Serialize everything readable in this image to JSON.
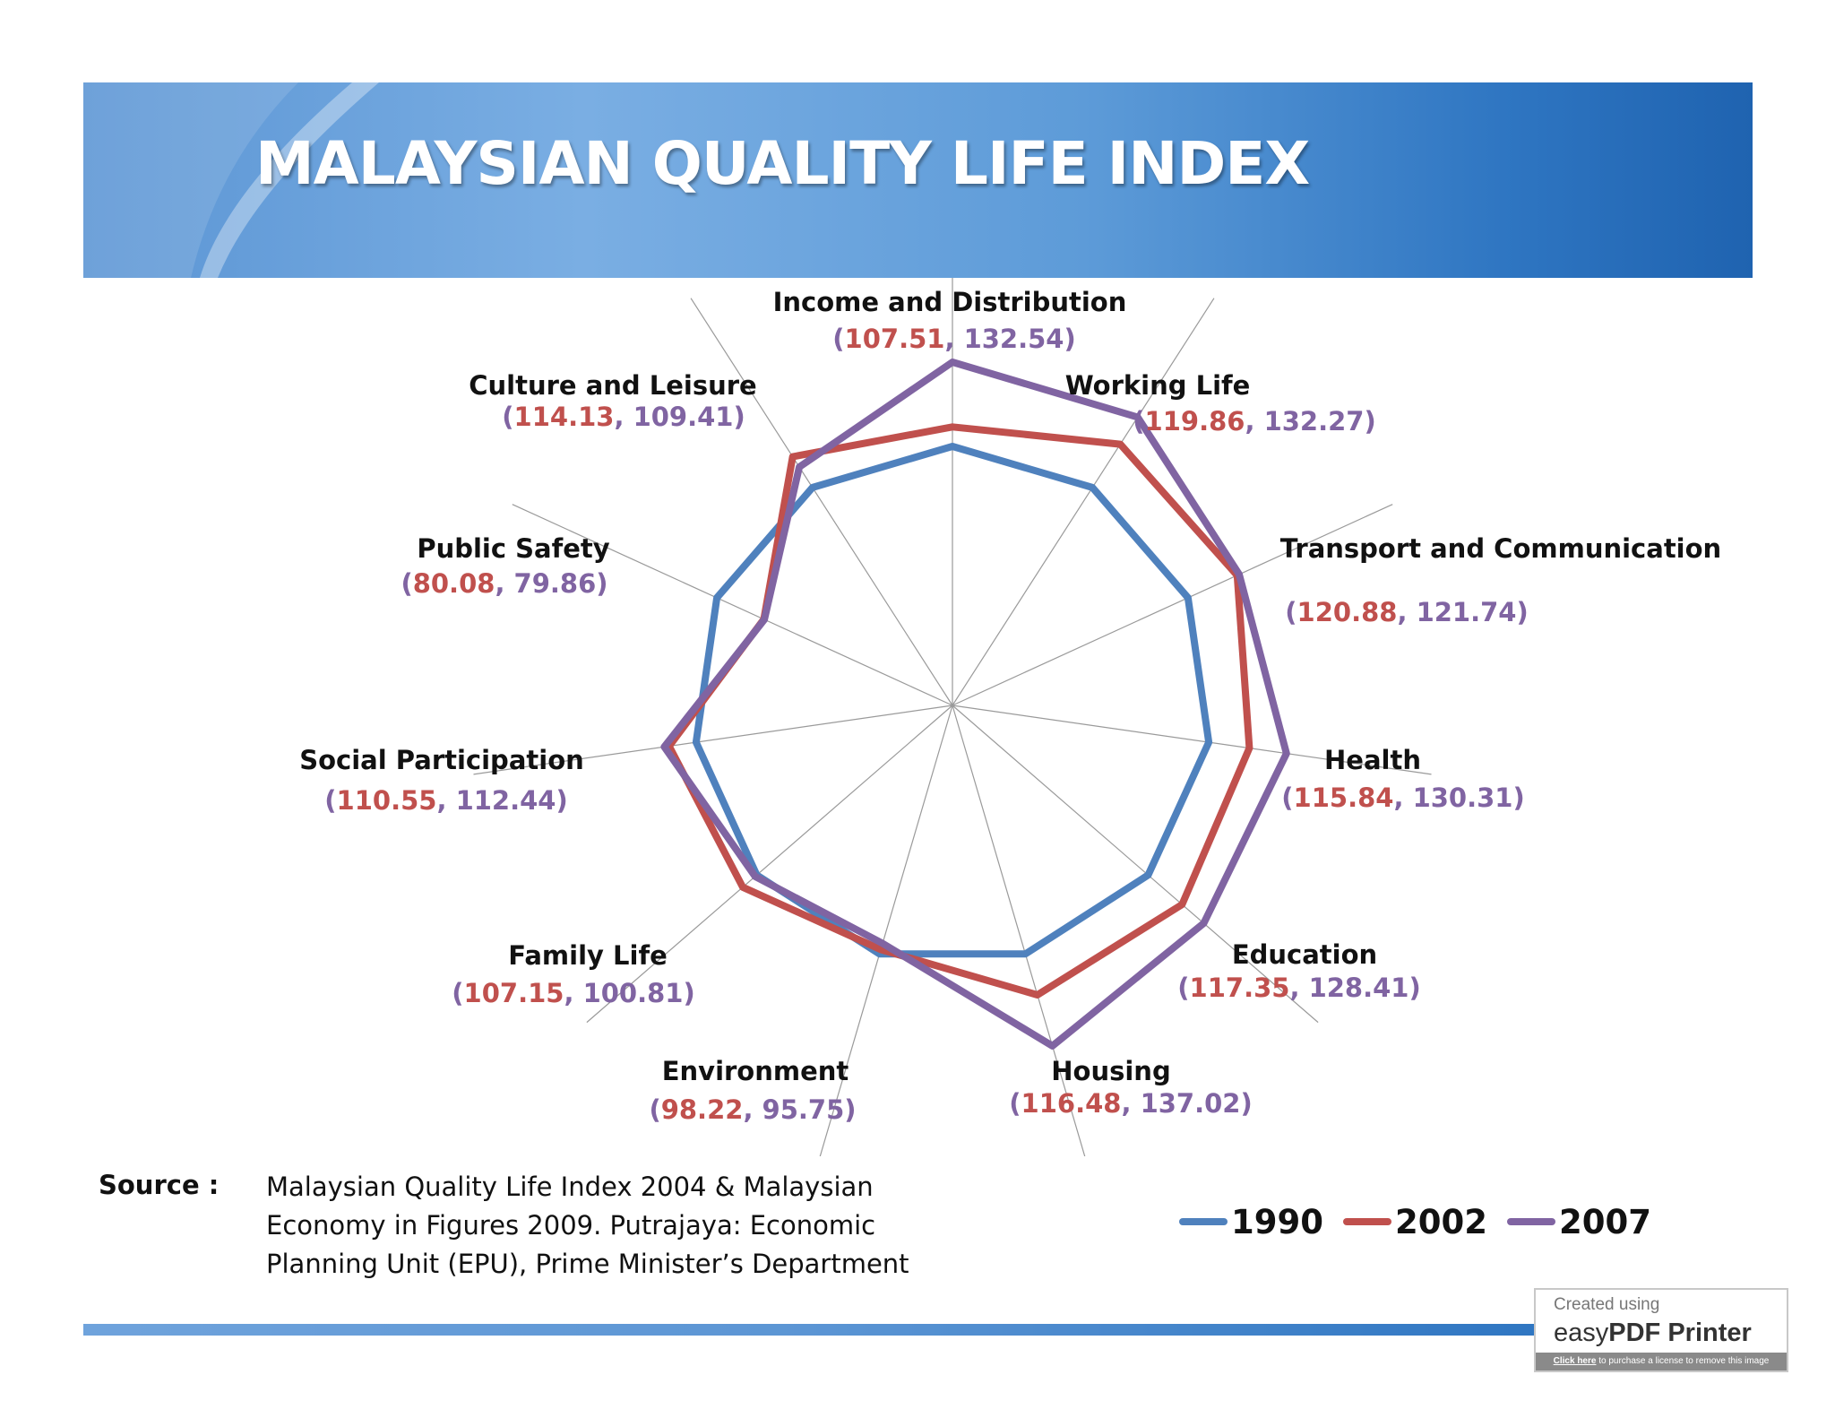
{
  "header": {
    "title": "MALAYSIAN QUALITY LIFE INDEX"
  },
  "chart_data": {
    "type": "radar",
    "categories": [
      "Income and Distribution",
      "Working Life",
      "Transport and Communication",
      "Health",
      "Education",
      "Housing",
      "Environment",
      "Family Life",
      "Social Participation",
      "Public Safety",
      "Culture and Leisure"
    ],
    "value_labels": [
      [
        "107.51",
        "132.54"
      ],
      [
        "119.86",
        "132.27"
      ],
      [
        "120.88",
        "121.74"
      ],
      [
        "115.84",
        "130.31"
      ],
      [
        "117.35",
        "128.41"
      ],
      [
        "116.48",
        "137.02"
      ],
      [
        "98.22",
        "95.75"
      ],
      [
        "107.15",
        "100.81"
      ],
      [
        "110.55",
        "112.44"
      ],
      [
        "80.08",
        "79.86"
      ],
      [
        "114.13",
        "109.41"
      ]
    ],
    "series": [
      {
        "name": "1990",
        "color": "#4f81bd",
        "values": [
          100,
          100,
          100,
          100,
          100,
          100,
          100,
          100,
          100,
          100,
          100
        ]
      },
      {
        "name": "2002",
        "color": "#c0504d",
        "values": [
          107.51,
          119.86,
          120.88,
          115.84,
          117.35,
          116.48,
          98.22,
          107.15,
          110.55,
          80.08,
          114.13
        ]
      },
      {
        "name": "2007",
        "color": "#8064a2",
        "values": [
          132.54,
          132.27,
          121.74,
          130.31,
          128.41,
          137.02,
          95.75,
          100.81,
          112.44,
          79.86,
          109.41
        ]
      }
    ],
    "grid": false,
    "legend_position": "bottom-right"
  },
  "source": {
    "label": "Source :",
    "lines": [
      "Malaysian Quality Life Index 2004 & Malaysian",
      "Economy in Figures 2009. Putrajaya: Economic",
      "Planning Unit (EPU), Prime Minister’s Department"
    ]
  },
  "watermark": {
    "line1": "Created using",
    "brand_prefix": "easy",
    "brand_bold": "PDF Printer",
    "link_text": "Click here",
    "strip_text": " to purchase a license to remove this image"
  }
}
